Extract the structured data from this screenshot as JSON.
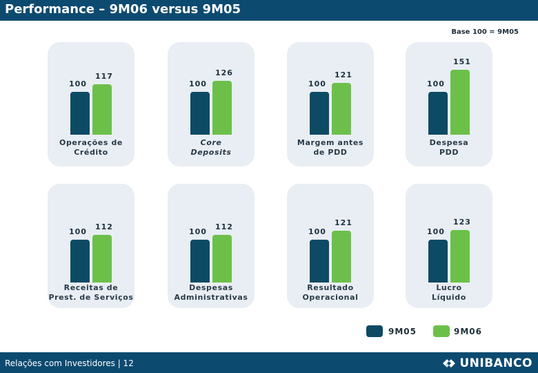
{
  "header": {
    "title": "Performance – 9M06 versus 9M05"
  },
  "base_note": "Base 100 = 9M05",
  "colors": {
    "series_9m05": "#0d4a63",
    "series_9m06": "#6cc04a",
    "header": "#0d4a70",
    "panel": "#e8eef3"
  },
  "chart_data": {
    "type": "bar",
    "ylim": [
      0,
      160
    ],
    "legend": {
      "placement": "bottom-right"
    },
    "series_names": [
      "9M05",
      "9M06"
    ],
    "charts": [
      {
        "category": "Operações de\nCrédito",
        "italic": false,
        "values": [
          100,
          117
        ],
        "labels": [
          "100",
          "117"
        ]
      },
      {
        "category": "Core\nDeposits",
        "italic": true,
        "values": [
          100,
          126
        ],
        "labels": [
          "100",
          "126"
        ]
      },
      {
        "category": "Margem antes\nde PDD",
        "italic": false,
        "values": [
          100,
          121
        ],
        "labels": [
          "100",
          "121"
        ]
      },
      {
        "category": "Despesa\nPDD",
        "italic": false,
        "values": [
          100,
          151
        ],
        "labels": [
          "100",
          "151"
        ]
      },
      {
        "category": "Receitas de\nPrest. de Serviços",
        "italic": false,
        "values": [
          100,
          112
        ],
        "labels": [
          "100",
          "112"
        ]
      },
      {
        "category": "Despesas\nAdministrativas",
        "italic": false,
        "values": [
          100,
          112
        ],
        "labels": [
          "100",
          "112"
        ]
      },
      {
        "category": "Resultado\nOperacional",
        "italic": false,
        "values": [
          100,
          121
        ],
        "labels": [
          "100",
          "121"
        ]
      },
      {
        "category": "Lucro\nLíquido",
        "italic": false,
        "values": [
          100,
          123
        ],
        "labels": [
          "100",
          "123"
        ]
      }
    ]
  },
  "footer": {
    "text": "Relações com Investidores | 12",
    "logo_text": "UNIBANCO",
    "logo_icon": "unibanco-logo-icon"
  }
}
